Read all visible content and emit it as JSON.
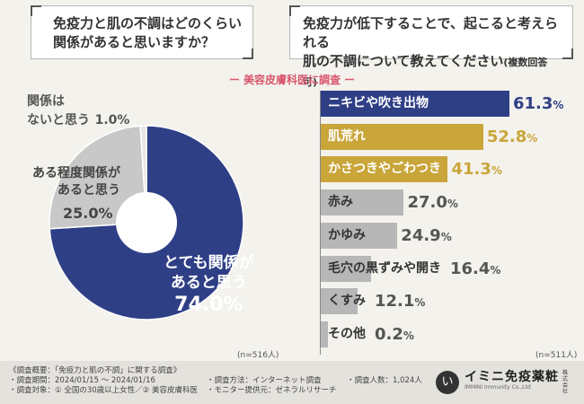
{
  "questions": {
    "q1": [
      "免疫力と肌の不調はどのくらい",
      "関係があると思いますか？"
    ],
    "q2_line1": "免疫力が低下することで、起こると考えられる",
    "q2_line2": "肌の不調について教えてください",
    "q2_note": "(複数回答可)"
  },
  "survey_label": "ー 美容皮膚科医に調査 ー",
  "colors": {
    "navy": "#2f3f86",
    "gold": "#c9a53a",
    "gray": "#b7b7b7",
    "lightgray": "#cfcfcf",
    "accent": "#d8556e"
  },
  "chart_data": [
    {
      "type": "pie",
      "title": "免疫力と肌の不調はどのくらい関係があると思いますか？",
      "slices": [
        {
          "label": "とても関係があると思う",
          "label_lines": [
            "とても関係が",
            "あると思う"
          ],
          "value": 74.0,
          "display": "74.0%",
          "color": "#2f3f86"
        },
        {
          "label": "ある程度関係があると思う",
          "label_lines": [
            "ある程度関係が",
            "あると思う"
          ],
          "value": 25.0,
          "display": "25.0%",
          "color": "#c8c8c8"
        },
        {
          "label": "関係はないと思う",
          "label_lines": [
            "関係は",
            "ないと思う"
          ],
          "value": 1.0,
          "display": "1.0%",
          "color": "#e6e6e6"
        }
      ],
      "n": "(n=516人)"
    },
    {
      "type": "bar",
      "orientation": "horizontal",
      "title": "免疫力が低下することで、起こると考えられる肌の不調について教えてください(複数回答可)",
      "categories": [
        "ニキビや吹き出物",
        "肌荒れ",
        "かさつきやごわつき",
        "赤み",
        "かゆみ",
        "毛穴の黒ずみや開き",
        "くすみ",
        "その他"
      ],
      "values": [
        61.3,
        52.8,
        41.3,
        27.0,
        24.9,
        16.4,
        12.1,
        0.2
      ],
      "displays": [
        "61.3%",
        "52.8%",
        "41.3%",
        "27.0%",
        "24.9%",
        "16.4%",
        "12.1%",
        "0.2%"
      ],
      "bar_colors": [
        "#2f3f86",
        "#c9a53a",
        "#c9a53a",
        "#b7b7b7",
        "#b7b7b7",
        "#b7b7b7",
        "#b7b7b7",
        "#b7b7b7"
      ],
      "label_colors": [
        "#ffffff",
        "#ffffff",
        "#ffffff",
        "#333333",
        "#333333",
        "#333333",
        "#333333",
        "#333333"
      ],
      "value_colors": [
        "#2f3f86",
        "#c9a53a",
        "#c9a53a",
        "#555555",
        "#555555",
        "#555555",
        "#555555",
        "#555555"
      ],
      "n": "(n=511人)"
    }
  ],
  "footer": {
    "lines": [
      "《調査概要：「免疫力と肌の不調」に関する調査》",
      "・調査期間：2024/01/15 ～ 2024/01/16",
      "・調査対象：① 全国の30歳以上女性／② 美容皮膚科医"
    ],
    "method": "・調査方法：インターネット調査",
    "provider": "・モニター提供元：ゼネラルリサーチ",
    "count": "・調査人数：1,024人",
    "logo_mark": "い",
    "logo_name": "イミニ免疫薬粧",
    "logo_sub": "IMMINI Immunity Co.,Ltd",
    "logo_side": "株式会社"
  }
}
